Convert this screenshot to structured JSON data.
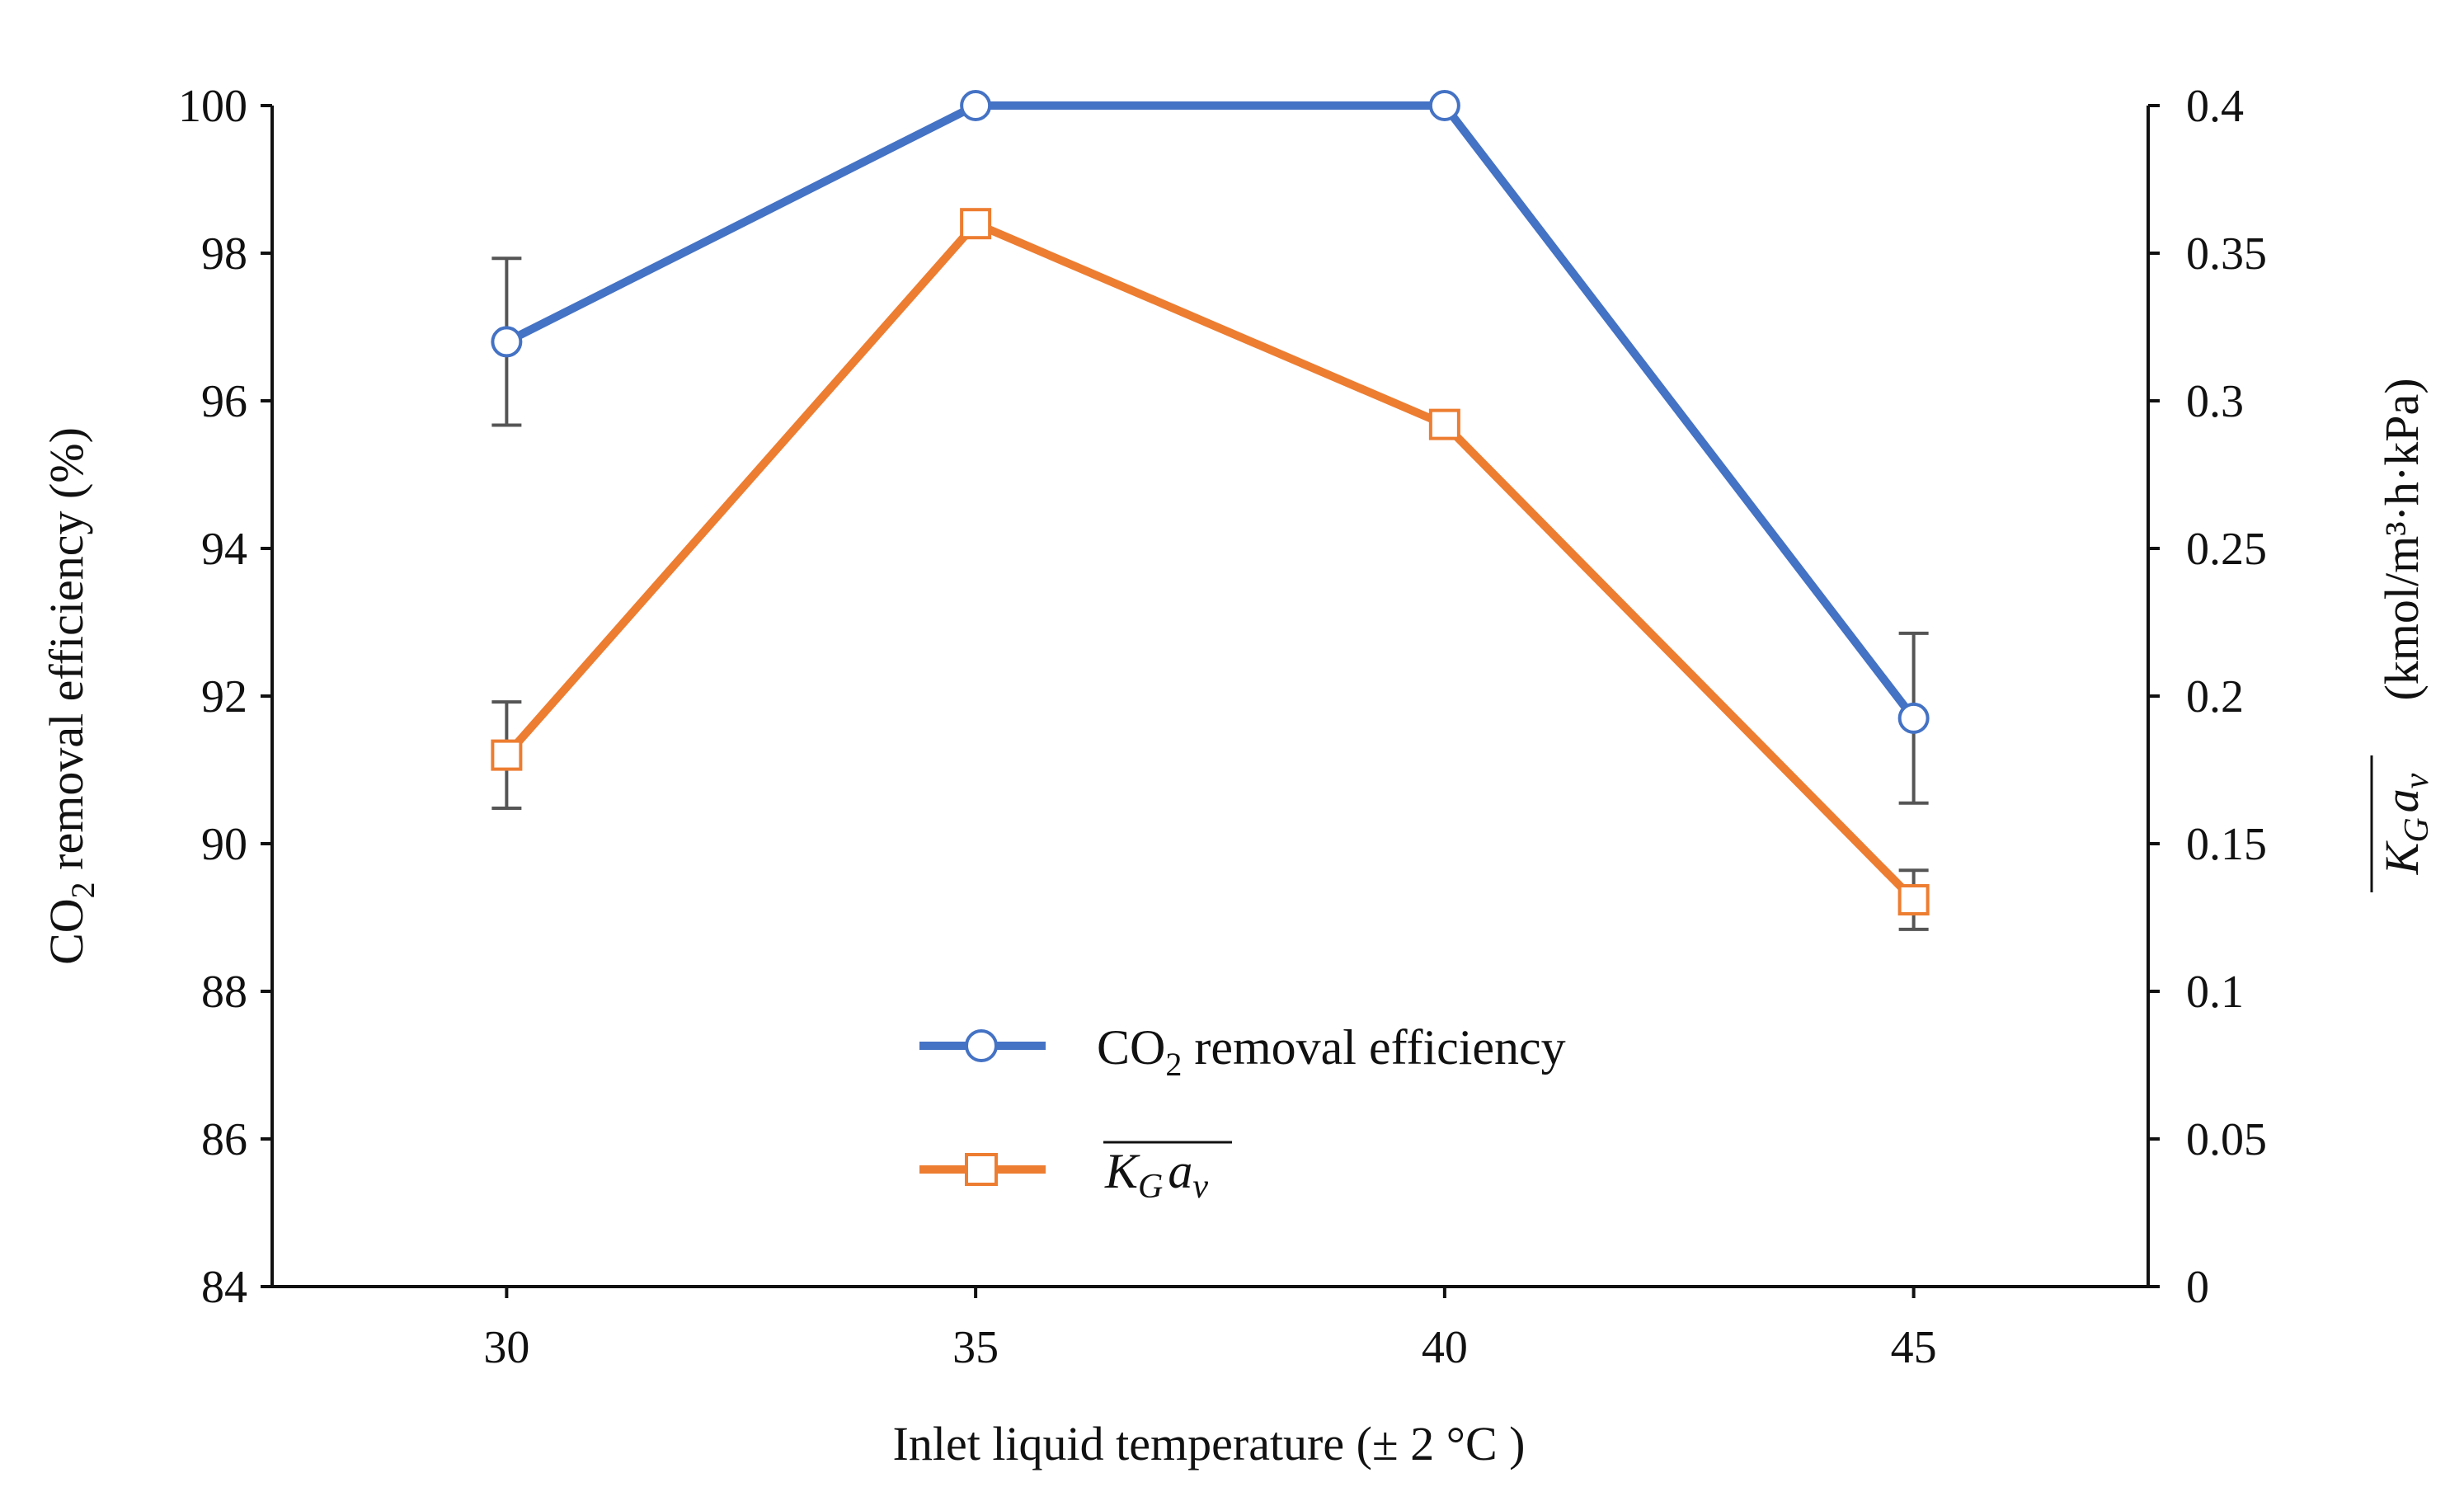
{
  "chart_data": {
    "type": "line",
    "x": [
      30,
      35,
      40,
      45
    ],
    "x_ticks": [
      "30",
      "35",
      "40",
      "45"
    ],
    "xlim": [
      27.5,
      47.5
    ],
    "xlabel": "Inlet liquid temperature (± 2 °C )",
    "y_left": {
      "ylabel_prefix": "CO",
      "ylabel_sub": "2",
      "ylabel_suffix": " removal efficiency (%)",
      "ylim": [
        84,
        100
      ],
      "ticks": [
        "84",
        "86",
        "88",
        "90",
        "92",
        "94",
        "96",
        "98",
        "100"
      ]
    },
    "y_right": {
      "ylabel_K": "K",
      "ylabel_G": "G",
      "ylabel_a": "a",
      "ylabel_v": "v",
      "ylabel_unit": "(kmol/m³·h·kPa)",
      "ylim": [
        0,
        0.4
      ],
      "ticks": [
        "0",
        "0.05",
        "0.1",
        "0.15",
        "0.2",
        "0.25",
        "0.3",
        "0.35",
        "0.4"
      ]
    },
    "series": [
      {
        "name_prefix": "CO",
        "name_sub": "2",
        "name_suffix": " removal efficiency",
        "axis": "left",
        "marker": "circle",
        "color": "#4472C4",
        "values": [
          96.8,
          100,
          100,
          91.7
        ],
        "error": [
          1.13,
          0,
          0,
          1.15
        ]
      },
      {
        "name_K": "K",
        "name_G": "G",
        "name_a": "a",
        "name_v": "v",
        "axis": "right",
        "marker": "square",
        "color": "#ED7D31",
        "values": [
          0.18,
          0.36,
          0.292,
          0.131
        ],
        "error": [
          0.018,
          0.004,
          0.004,
          0.01
        ]
      }
    ],
    "legend": "center-bottom",
    "grid": false
  }
}
